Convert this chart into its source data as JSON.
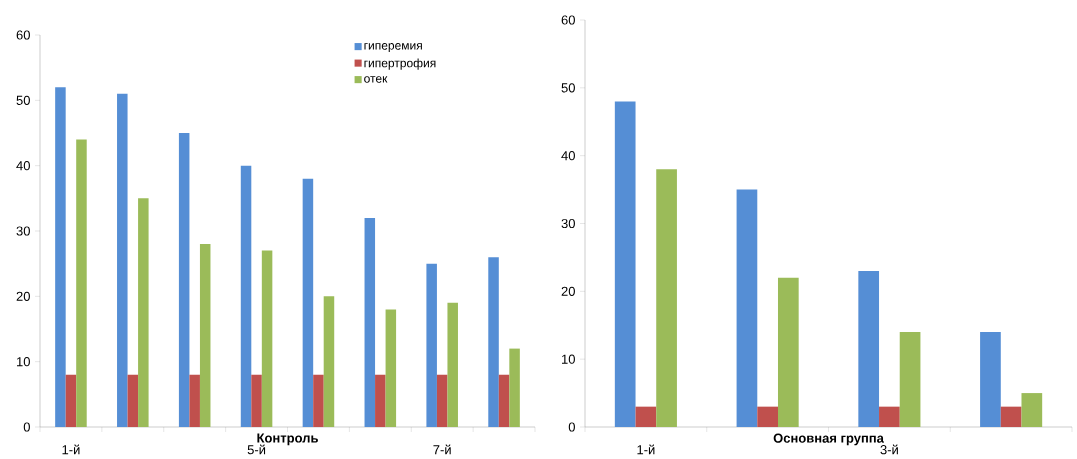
{
  "chart_data": [
    {
      "type": "bar",
      "xlabel": "Контроль",
      "categories": [
        "1-й",
        null,
        null,
        "5-й",
        null,
        null,
        "7-й",
        null
      ],
      "ylim": [
        0,
        60
      ],
      "yticks": [
        0,
        10,
        20,
        30,
        40,
        50,
        60
      ],
      "legend": "top",
      "series": [
        {
          "name": "гиперемия",
          "color": "#558ed5",
          "values": [
            52,
            51,
            45,
            40,
            38,
            32,
            25,
            26
          ]
        },
        {
          "name": "гипертрофия",
          "color": "#c0504d",
          "values": [
            8,
            8,
            8,
            8,
            8,
            8,
            8,
            8
          ]
        },
        {
          "name": "отек",
          "color": "#9bbb59",
          "values": [
            44,
            35,
            28,
            27,
            20,
            18,
            19,
            12
          ]
        }
      ]
    },
    {
      "type": "bar",
      "xlabel": "Основная группа",
      "categories": [
        "1-й",
        null,
        "3-й",
        null
      ],
      "ylim": [
        0,
        60
      ],
      "yticks": [
        0,
        10,
        20,
        30,
        40,
        50,
        60
      ],
      "series": [
        {
          "color": "#558ed5",
          "values": [
            48,
            35,
            23,
            14
          ]
        },
        {
          "color": "#c0504d",
          "values": [
            3,
            3,
            3,
            3
          ]
        },
        {
          "color": "#9bbb59",
          "values": [
            38,
            22,
            14,
            5
          ]
        }
      ]
    }
  ]
}
